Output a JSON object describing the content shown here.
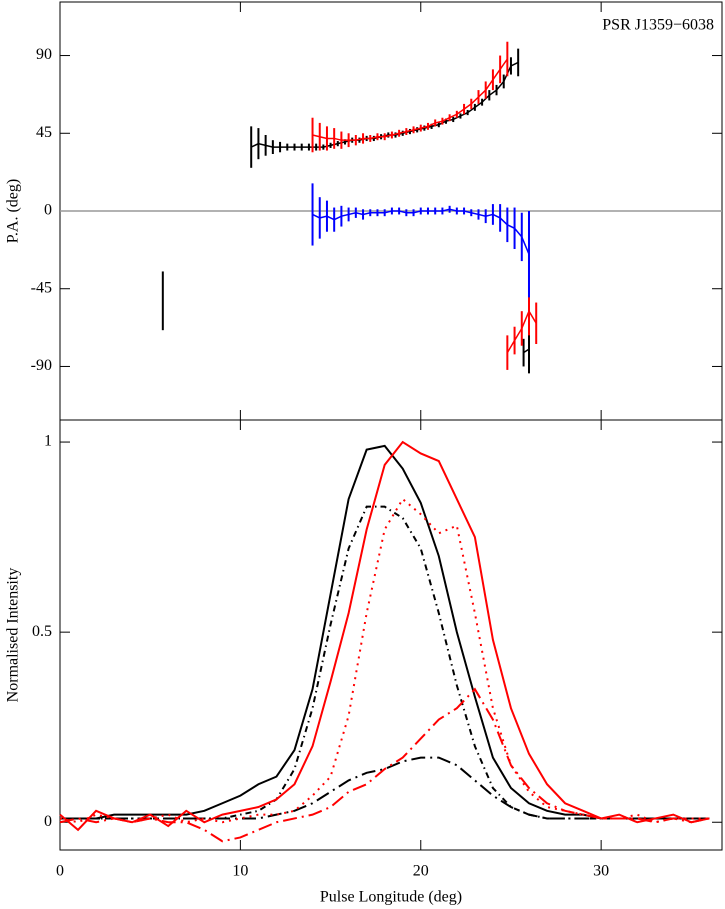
{
  "chart_data": [
    {
      "type": "errorbar",
      "annotation": "PSR J1359−6038",
      "ylabel": "P.A. (deg)",
      "xlim": [
        0,
        36.7
      ],
      "xticks": [
        0,
        10,
        20,
        30
      ],
      "ylim": [
        -121,
        121
      ],
      "yticks": [
        90,
        45,
        0,
        -45,
        -90
      ],
      "hline": 0,
      "series": [
        {
          "color": "#000000",
          "x": [
            10.6,
            11.0,
            11.4,
            11.8,
            12.2,
            12.6,
            13.0,
            13.4,
            13.8,
            14.2,
            14.6,
            15.0,
            15.4,
            15.8,
            16.2,
            16.6,
            17.0,
            17.4,
            17.8,
            18.2,
            18.6,
            19.0,
            19.4,
            19.8,
            20.2,
            20.6,
            21.0,
            21.4,
            21.8,
            22.2,
            22.6,
            23.0,
            23.4,
            23.8,
            24.2,
            24.6,
            25.0,
            25.4
          ],
          "values": [
            37,
            39,
            38,
            37,
            37,
            37,
            37,
            37,
            37,
            37,
            37,
            38,
            39,
            40,
            41,
            41,
            42,
            42,
            43,
            44,
            44,
            45,
            46,
            47,
            48,
            49,
            50,
            52,
            53,
            55,
            57,
            60,
            63,
            67,
            70,
            75,
            84,
            86
          ],
          "errors": [
            12,
            9,
            6,
            4,
            3,
            2,
            2,
            2,
            2,
            2,
            1.5,
            1.5,
            1.5,
            1.5,
            1.5,
            1.5,
            1.5,
            1.5,
            1.5,
            1.5,
            1.5,
            1.5,
            1.5,
            1.5,
            1.5,
            1.5,
            1.5,
            1.5,
            1.5,
            1.5,
            1.5,
            2,
            2,
            3,
            3,
            4,
            5,
            8
          ]
        },
        {
          "color": "#000000",
          "x": [
            5.7
          ],
          "values": [
            -52
          ],
          "errors": [
            17
          ]
        },
        {
          "color": "#000000",
          "x": [
            25.7,
            26.0
          ],
          "values": [
            -82,
            -80
          ],
          "errors": [
            8,
            14
          ]
        },
        {
          "color": "#ff0000",
          "x": [
            14.0,
            14.4,
            14.8,
            15.2,
            15.6,
            16.0,
            16.4,
            16.8,
            17.2,
            17.6,
            18.0,
            18.4,
            18.8,
            19.2,
            19.6,
            20.0,
            20.4,
            20.8,
            21.2,
            21.6,
            22.0,
            22.4,
            22.8,
            23.2,
            23.6,
            24.0,
            24.4,
            24.8
          ],
          "values": [
            44,
            43,
            42,
            42,
            41,
            41,
            41,
            42,
            42,
            43,
            43,
            44,
            45,
            46,
            47,
            48,
            49,
            51,
            52,
            54,
            56,
            59,
            62,
            66,
            70,
            76,
            82,
            88
          ],
          "errors": [
            10,
            8,
            7,
            6,
            5,
            4,
            3,
            3,
            2,
            2,
            2,
            2,
            2,
            2,
            2,
            2,
            2,
            2,
            2,
            2,
            2,
            3,
            3,
            4,
            5,
            6,
            8,
            10
          ]
        },
        {
          "color": "#ff0000",
          "x": [
            24.8,
            25.2,
            25.6,
            26.0,
            26.4
          ],
          "values": [
            -82,
            -75,
            -68,
            -58,
            -65
          ],
          "errors": [
            10,
            8,
            10,
            14,
            12
          ]
        },
        {
          "color": "#0000ff",
          "x": [
            14.0,
            14.4,
            14.8,
            15.2,
            15.6,
            16.0,
            16.4,
            16.8,
            17.2,
            17.6,
            18.0,
            18.4,
            18.8,
            19.2,
            19.6,
            20.0,
            20.4,
            20.8,
            21.2,
            21.6,
            22.0,
            22.4,
            22.8,
            23.2,
            23.6,
            24.0,
            24.4,
            24.8,
            25.2,
            25.6,
            26.0
          ],
          "values": [
            -2,
            -4,
            -3,
            -5,
            -3,
            -2,
            -1,
            -2,
            -1,
            -1,
            -1,
            0,
            0,
            -1,
            -1,
            0,
            0,
            0,
            0,
            1,
            0,
            0,
            -1,
            -2,
            -3,
            -2,
            -4,
            -8,
            -10,
            -15,
            -25
          ],
          "errors": [
            18,
            12,
            9,
            7,
            6,
            4,
            3,
            3,
            2,
            2,
            2,
            2,
            2,
            2,
            2,
            2,
            2,
            2,
            2,
            2,
            2,
            2,
            2,
            3,
            4,
            6,
            8,
            10,
            12,
            14,
            25
          ]
        }
      ]
    },
    {
      "type": "line",
      "xlabel": "Pulse Longitude (deg)",
      "ylabel": "Normalised Intensity",
      "xlim": [
        0,
        36.7
      ],
      "xticks": [
        0,
        10,
        20,
        30
      ],
      "ylim": [
        -0.073,
        1.058
      ],
      "yticks": [
        0,
        0.5,
        1
      ],
      "x": [
        0,
        1,
        2,
        3,
        4,
        5,
        6,
        7,
        8,
        9,
        10,
        11,
        12,
        13,
        14,
        15,
        16,
        17,
        18,
        19,
        20,
        21,
        22,
        23,
        24,
        25,
        26,
        27,
        28,
        29,
        30,
        31,
        32,
        33,
        34,
        35,
        36
      ],
      "series": [
        {
          "color": "#000000",
          "dash": "solid",
          "values": [
            0.01,
            0.01,
            0.01,
            0.02,
            0.02,
            0.02,
            0.02,
            0.02,
            0.03,
            0.05,
            0.07,
            0.1,
            0.12,
            0.19,
            0.35,
            0.6,
            0.85,
            0.98,
            0.99,
            0.93,
            0.84,
            0.7,
            0.5,
            0.33,
            0.17,
            0.09,
            0.05,
            0.03,
            0.02,
            0.02,
            0.01,
            0.01,
            0.01,
            0.01,
            0.01,
            0.01,
            0.01
          ]
        },
        {
          "color": "#000000",
          "dash": "dashdot",
          "values": [
            0.01,
            0.01,
            0.01,
            0.01,
            0.01,
            0.01,
            0.01,
            0.01,
            0.01,
            0.01,
            0.02,
            0.03,
            0.06,
            0.14,
            0.3,
            0.52,
            0.72,
            0.83,
            0.83,
            0.8,
            0.72,
            0.55,
            0.36,
            0.2,
            0.09,
            0.04,
            0.02,
            0.01,
            0.01,
            0.01,
            0.01,
            0.01,
            0.01,
            0.01,
            0.01,
            0.01,
            0.01
          ]
        },
        {
          "color": "#000000",
          "dash": "longdashdot",
          "values": [
            0.01,
            0.01,
            0.01,
            0.01,
            0.01,
            0.01,
            0.01,
            0.01,
            0.01,
            0.01,
            0.01,
            0.01,
            0.02,
            0.03,
            0.05,
            0.08,
            0.11,
            0.13,
            0.14,
            0.16,
            0.17,
            0.17,
            0.15,
            0.11,
            0.07,
            0.04,
            0.02,
            0.01,
            0.01,
            0.01,
            0.01,
            0.01,
            0.01,
            0.01,
            0.01,
            0.01,
            0.01
          ]
        },
        {
          "color": "#ff0000",
          "dash": "solid",
          "values": [
            0.02,
            -0.02,
            0.03,
            0.01,
            0.0,
            0.02,
            -0.01,
            0.03,
            0.0,
            0.02,
            0.03,
            0.04,
            0.06,
            0.1,
            0.2,
            0.37,
            0.55,
            0.77,
            0.94,
            1.0,
            0.97,
            0.95,
            0.85,
            0.75,
            0.48,
            0.3,
            0.18,
            0.1,
            0.05,
            0.03,
            0.01,
            0.02,
            0.0,
            0.01,
            0.02,
            0.0,
            0.01
          ]
        },
        {
          "color": "#ff0000",
          "dash": "dotted",
          "values": [
            0.01,
            0.0,
            0.02,
            0.01,
            0.0,
            0.01,
            0.02,
            0.0,
            0.01,
            0.0,
            0.01,
            0.02,
            0.02,
            0.03,
            0.07,
            0.12,
            0.28,
            0.55,
            0.77,
            0.85,
            0.81,
            0.76,
            0.78,
            0.55,
            0.3,
            0.15,
            0.08,
            0.04,
            0.03,
            0.02,
            0.01,
            0.01,
            0.02,
            0.0,
            0.01,
            0.01,
            0.01
          ]
        },
        {
          "color": "#ff0000",
          "dash": "longdashdot",
          "values": [
            0.0,
            0.01,
            0.0,
            0.01,
            0.0,
            0.01,
            0.0,
            0.0,
            -0.02,
            -0.05,
            -0.04,
            -0.02,
            0.0,
            0.01,
            0.02,
            0.04,
            0.08,
            0.1,
            0.14,
            0.17,
            0.22,
            0.27,
            0.3,
            0.35,
            0.27,
            0.15,
            0.09,
            0.05,
            0.03,
            0.02,
            0.01,
            0.01,
            0.01,
            0.0,
            0.01,
            0.0,
            0.01
          ]
        }
      ]
    }
  ]
}
